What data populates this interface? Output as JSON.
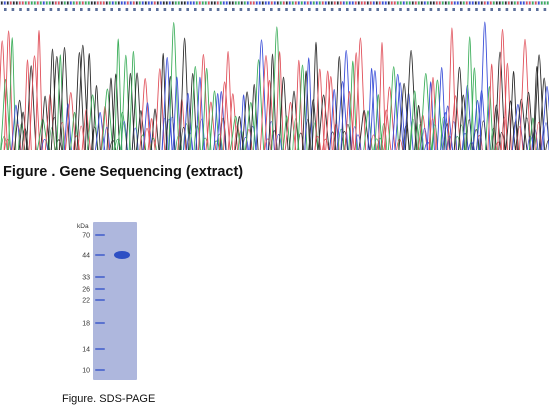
{
  "sequencing": {
    "caption": "Figure . Gene Sequencing (extract)",
    "base_colors": {
      "A": "#3cae5a",
      "C": "#3b4fd8",
      "G": "#2b2b2b",
      "T": "#e0505a"
    },
    "header_letter_color": "#5c6f9a"
  },
  "gel": {
    "caption": "Figure. SDS-PAGE",
    "unit_label": "kDa",
    "ladder_kda": [
      "70",
      "44",
      "33",
      "26",
      "22",
      "18",
      "14",
      "10"
    ],
    "gel_color": "#aeb7dd",
    "ladder_color": "#5a72cf",
    "band_color": "#2d4fc4",
    "sample_band_kda": 44
  }
}
